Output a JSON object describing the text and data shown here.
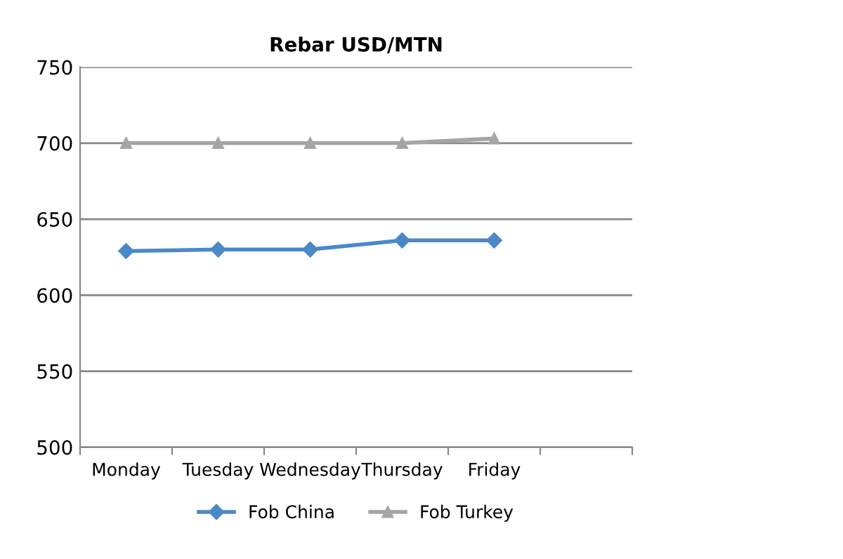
{
  "chart_data": {
    "type": "line",
    "title": "Rebar USD/MTN",
    "categories": [
      "Monday",
      "Tuesday",
      "Wednesday",
      "Thursday",
      "Friday",
      null
    ],
    "series": [
      {
        "name": "Fob China",
        "color": "#4a89c8",
        "marker": "diamond",
        "values": [
          629,
          630,
          630,
          636,
          636,
          null
        ]
      },
      {
        "name": "Fob Turkey",
        "color": "#a5a5a5",
        "marker": "triangle",
        "values": [
          700,
          700,
          700,
          700,
          703,
          null
        ]
      }
    ],
    "ylim": [
      500,
      750
    ],
    "yticks": [
      500,
      550,
      600,
      650,
      700,
      750
    ],
    "grid": "y",
    "legend": "bottom"
  }
}
